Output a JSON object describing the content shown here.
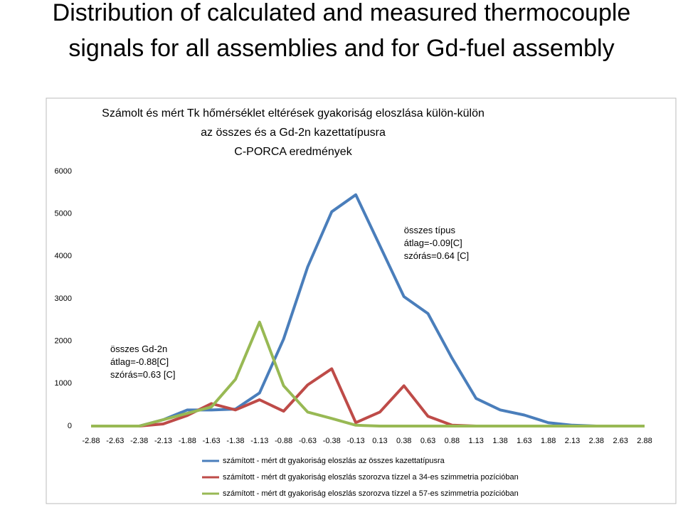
{
  "chart_data": {
    "type": "line",
    "slide_title": [
      "Distribution of calculated and measured thermocouple",
      "signals for all assemblies and for Gd-fuel assembly"
    ],
    "title": [
      "Számolt és mért Tk hőmérséklet eltérések gyakoriság eloszlása külön-külön",
      "az összes és a Gd-2n kazettatípusra",
      "C-PORCA eredmények"
    ],
    "categories": [
      "-2.88",
      "-2.63",
      "-2.38",
      "-2.13",
      "-1.88",
      "-1.63",
      "-1.38",
      "-1.13",
      "-0.88",
      "-0.63",
      "-0.38",
      "-0.13",
      "0.13",
      "0.38",
      "0.63",
      "0.88",
      "1.13",
      "1.38",
      "1.63",
      "1.88",
      "2.13",
      "2.38",
      "2.63",
      "2.88"
    ],
    "series": [
      {
        "name": "számított - mért dt gyakoriság eloszlás az összes kazettatípusra",
        "color": "#4a7ebb",
        "values": [
          0,
          0,
          0,
          150,
          380,
          380,
          400,
          780,
          2050,
          3750,
          5050,
          5450,
          4250,
          3050,
          2650,
          1600,
          650,
          380,
          260,
          80,
          20,
          0,
          0,
          0
        ]
      },
      {
        "name": "számított - mért dt gyakoriság eloszlás szorozva tízzel a 34-es szimmetria pozícióban",
        "color": "#be4b48",
        "values": [
          0,
          0,
          0,
          50,
          250,
          530,
          380,
          620,
          350,
          970,
          1350,
          80,
          330,
          950,
          230,
          20,
          0,
          0,
          0,
          0,
          0,
          0,
          0,
          0
        ]
      },
      {
        "name": "számított - mért dt gyakoriság eloszlás szorozva tízzel a 57-es szimmetria pozícióban",
        "color": "#98b954",
        "values": [
          0,
          0,
          0,
          150,
          300,
          450,
          1100,
          2450,
          950,
          330,
          180,
          20,
          0,
          0,
          0,
          0,
          0,
          0,
          0,
          0,
          0,
          0,
          0,
          0
        ]
      }
    ],
    "ylim": [
      0,
      6000
    ],
    "yticks": [
      0,
      1000,
      2000,
      3000,
      4000,
      5000,
      6000
    ],
    "annotations": [
      {
        "lines": [
          "összes típus",
          "átlag=-0.09[C]",
          "szórás=0.64 [C]"
        ],
        "x": 13,
        "y": 4600
      },
      {
        "lines": [
          "összes Gd-2n",
          "átlag=-0.88[C]",
          "szórás=0.63 [C]"
        ],
        "x": 0.8,
        "y": 1800
      }
    ]
  }
}
